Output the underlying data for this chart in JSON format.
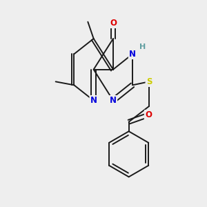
{
  "background_color": "#eeeeee",
  "bond_color": "#1a1a1a",
  "atom_colors": {
    "N": "#0000dd",
    "O": "#dd0000",
    "S": "#cccc00",
    "H": "#5f9ea0",
    "C": "#1a1a1a"
  },
  "figsize": [
    3.0,
    3.0
  ],
  "dpi": 100
}
